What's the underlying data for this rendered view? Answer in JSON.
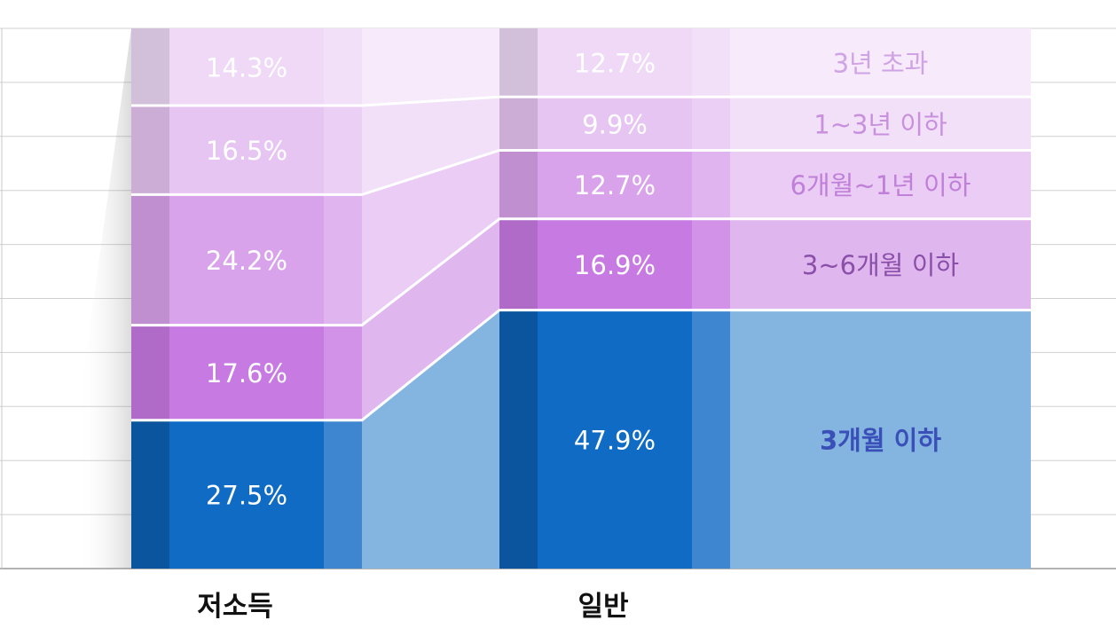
{
  "chart_data": {
    "type": "bar",
    "stacked": true,
    "percent": true,
    "categories": [
      "저소득",
      "일반"
    ],
    "series": [
      {
        "name": "3개월 이하",
        "values": [
          27.5,
          47.9
        ],
        "value_labels": [
          "27.5%",
          "47.9%"
        ],
        "color": "#0f6bc4",
        "label_color": "#3a4fb8",
        "label_bold": true
      },
      {
        "name": "3~6개월 이하",
        "values": [
          17.6,
          16.9
        ],
        "value_labels": [
          "17.6%",
          "16.9%"
        ],
        "color": "#c77ae2",
        "label_color": "#8a4fa8",
        "label_bold": false
      },
      {
        "name": "6개월~1년 이하",
        "values": [
          24.2,
          12.7
        ],
        "value_labels": [
          "24.2%",
          "12.7%"
        ],
        "color": "#d9a3ec",
        "label_color": "#c07fd8",
        "label_bold": false
      },
      {
        "name": "1~3년 이하",
        "values": [
          16.5,
          9.9
        ],
        "value_labels": [
          "16.5%",
          "9.9%"
        ],
        "color": "#e7c5f2",
        "label_color": "#c890dd",
        "label_bold": false
      },
      {
        "name": "3년 초과",
        "values": [
          14.3,
          12.7
        ],
        "value_labels": [
          "14.3%",
          "12.7%"
        ],
        "color": "#efd9f7",
        "label_color": "#cfa3e4",
        "label_bold": false
      }
    ],
    "ylim": [
      0,
      100
    ],
    "grid": true,
    "legend": "right, inline with the 일반 bar"
  }
}
